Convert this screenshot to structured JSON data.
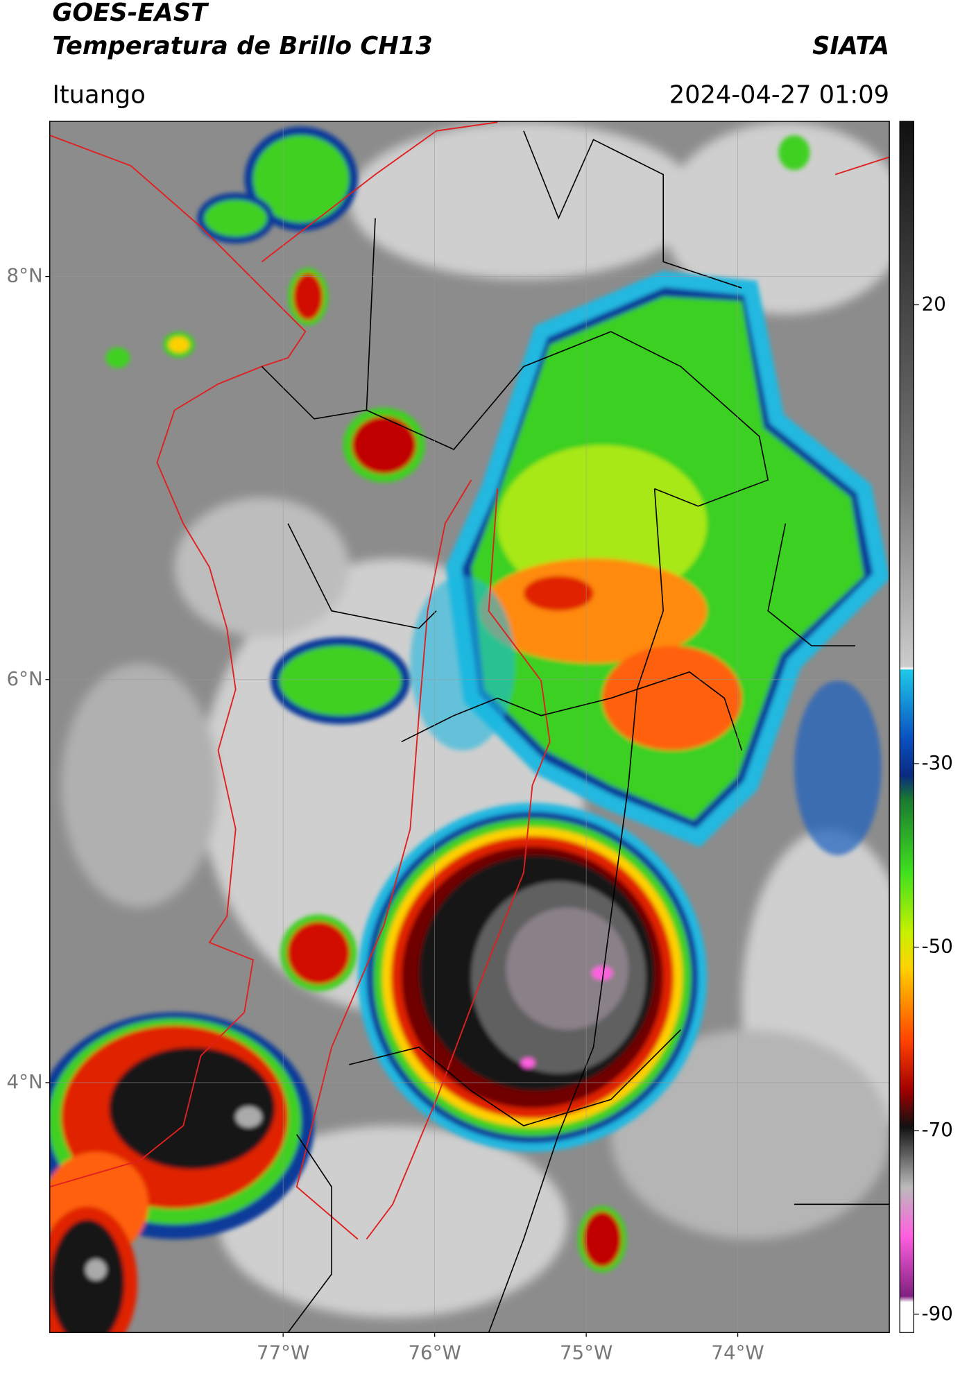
{
  "header": {
    "title": "GOES-EAST",
    "subtitle": "Temperatura de Brillo CH13",
    "org": "SIATA",
    "place": "Ituango",
    "datetime": "2024-04-27 01:09"
  },
  "map": {
    "lon_range": [
      -78.54,
      -73.0
    ],
    "lat_range": [
      2.76,
      8.77
    ],
    "lat_ticks": [
      {
        "value": 8,
        "label": "8°N"
      },
      {
        "value": 6,
        "label": "6°N"
      },
      {
        "value": 4,
        "label": "4°N"
      }
    ],
    "lon_ticks": [
      {
        "value": -77,
        "label": "77°W"
      },
      {
        "value": -76,
        "label": "76°W"
      },
      {
        "value": -75,
        "label": "75°W"
      },
      {
        "value": -74,
        "label": "74°W"
      }
    ]
  },
  "colorbar": {
    "lim": [
      -92,
      40
    ],
    "ticks": [
      20,
      -30,
      -50,
      -70,
      -90
    ]
  }
}
